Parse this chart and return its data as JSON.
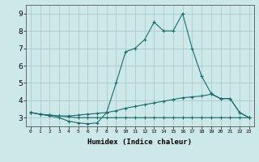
{
  "xlabel": "Humidex (Indice chaleur)",
  "background_color": "#cce8e8",
  "grid_color": "#aacccc",
  "line_color": "#1a6e6a",
  "xlim": [
    -0.5,
    23.5
  ],
  "ylim": [
    2.5,
    9.5
  ],
  "xtick_labels": [
    "0",
    "1",
    "2",
    "3",
    "4",
    "5",
    "6",
    "7",
    "8",
    "9",
    "10",
    "11",
    "12",
    "13",
    "14",
    "15",
    "16",
    "17",
    "18",
    "19",
    "20",
    "21",
    "22",
    "23"
  ],
  "yticks": [
    3,
    4,
    5,
    6,
    7,
    8,
    9
  ],
  "line1_x": [
    0,
    1,
    2,
    3,
    4,
    5,
    6,
    7,
    8,
    9,
    10,
    11,
    12,
    13,
    14,
    15,
    16,
    17,
    18,
    19,
    20,
    21,
    22,
    23
  ],
  "line1_y": [
    3.3,
    3.2,
    3.1,
    3.0,
    2.8,
    2.7,
    2.65,
    2.7,
    3.3,
    5.0,
    6.8,
    7.0,
    7.5,
    8.5,
    8.0,
    8.0,
    9.0,
    7.0,
    5.4,
    4.4,
    4.1,
    4.1,
    3.3,
    3.0
  ],
  "line2_x": [
    0,
    1,
    2,
    3,
    4,
    5,
    6,
    7,
    8,
    9,
    10,
    11,
    12,
    13,
    14,
    15,
    16,
    17,
    18,
    19,
    20,
    21,
    22,
    23
  ],
  "line2_y": [
    3.3,
    3.2,
    3.15,
    3.1,
    3.05,
    3.0,
    3.0,
    3.0,
    3.0,
    3.0,
    3.0,
    3.0,
    3.0,
    3.0,
    3.0,
    3.0,
    3.0,
    3.0,
    3.0,
    3.0,
    3.0,
    3.0,
    3.0,
    3.0
  ],
  "line3_x": [
    0,
    1,
    2,
    3,
    4,
    5,
    6,
    7,
    8,
    9,
    10,
    11,
    12,
    13,
    14,
    15,
    16,
    17,
    18,
    19,
    20,
    21,
    22,
    23
  ],
  "line3_y": [
    3.3,
    3.2,
    3.15,
    3.1,
    3.1,
    3.15,
    3.2,
    3.25,
    3.3,
    3.4,
    3.55,
    3.65,
    3.75,
    3.85,
    3.95,
    4.05,
    4.15,
    4.2,
    4.25,
    4.35,
    4.1,
    4.1,
    3.3,
    3.0
  ]
}
